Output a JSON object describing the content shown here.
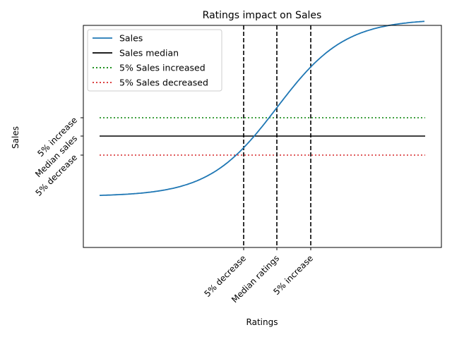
{
  "chart_data": {
    "type": "line",
    "title": "Ratings impact on Sales",
    "xlabel": "Ratings",
    "ylabel": "Sales",
    "grid": false,
    "legend_position": "top-left",
    "x_ticks": [
      "5% decrease",
      "Median ratings",
      "5% increase"
    ],
    "y_ticks": [
      "5% decrease",
      "Median sales",
      "5% increase"
    ],
    "series": [
      {
        "name": "Sales",
        "kind": "curve",
        "shape": "sigmoid",
        "color": "#1f77b4",
        "linestyle": "solid"
      },
      {
        "name": "Sales median",
        "kind": "hline",
        "at": "Median sales",
        "color": "#000000",
        "linestyle": "solid"
      },
      {
        "name": "5% Sales increased",
        "kind": "hline",
        "at": "5% increase",
        "color": "#008000",
        "linestyle": "dotted"
      },
      {
        "name": "5% Sales decreased",
        "kind": "hline",
        "at": "5% decrease",
        "color": "#d62728",
        "linestyle": "dotted"
      }
    ],
    "vlines": [
      {
        "at": "5% decrease",
        "color": "#000000",
        "linestyle": "dashed"
      },
      {
        "at": "Median ratings",
        "color": "#000000",
        "linestyle": "dashed"
      },
      {
        "at": "5% increase",
        "color": "#000000",
        "linestyle": "dashed"
      }
    ]
  }
}
